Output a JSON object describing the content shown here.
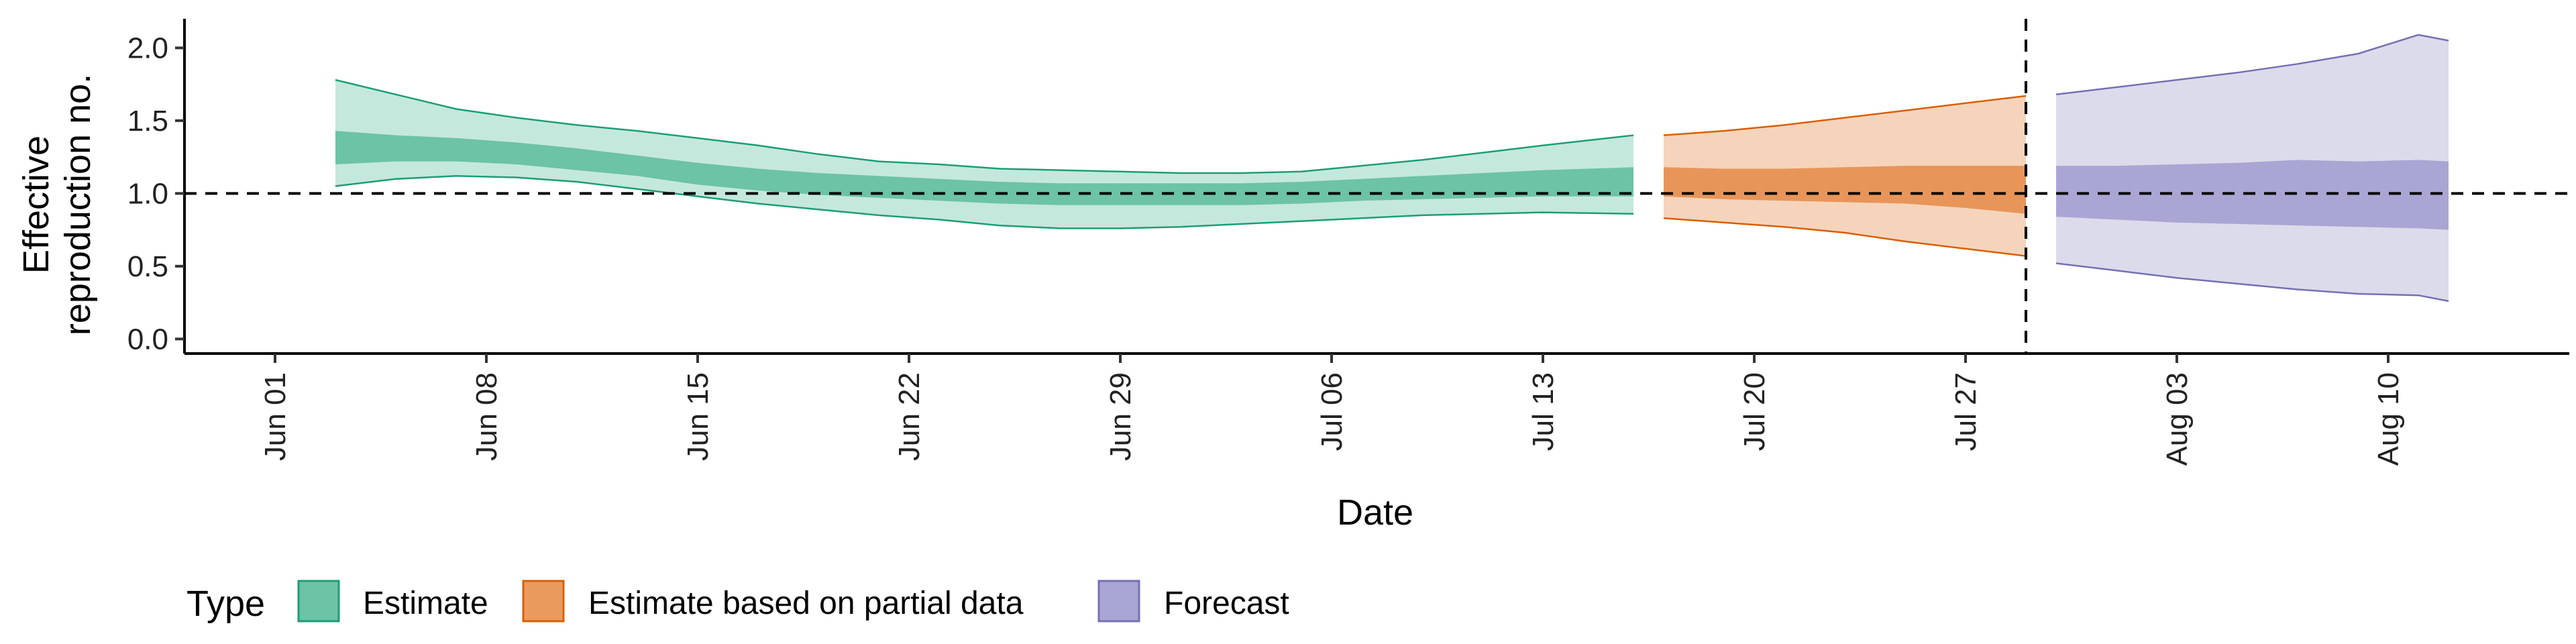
{
  "chart_data": {
    "type": "area",
    "xlabel": "Date",
    "ylabel_lines": [
      "Effective",
      "reproduction no."
    ],
    "ylim": [
      -0.1,
      2.2
    ],
    "yticks": [
      0.0,
      0.5,
      1.0,
      1.5,
      2.0
    ],
    "ytick_labels": [
      "0.0",
      "0.5",
      "1.0",
      "1.5",
      "2.0"
    ],
    "xlim": [
      "2020-05-29",
      "2020-08-16"
    ],
    "xticks": [
      "2020-06-01",
      "2020-06-08",
      "2020-06-15",
      "2020-06-22",
      "2020-06-29",
      "2020-07-06",
      "2020-07-13",
      "2020-07-20",
      "2020-07-27",
      "2020-08-03",
      "2020-08-10"
    ],
    "xtick_labels": [
      "Jun 01",
      "Jun 08",
      "Jun 15",
      "Jun 22",
      "Jun 29",
      "Jul 06",
      "Jul 13",
      "Jul 20",
      "Jul 27",
      "Aug 03",
      "Aug 10"
    ],
    "reference_hline": 1.0,
    "reference_vline": "2020-07-29",
    "grid": false,
    "legend": {
      "title": "Type",
      "position": "bottom",
      "entries": [
        {
          "label": "Estimate",
          "fill": "#6cc3a5",
          "stroke": "#1b9e77"
        },
        {
          "label": "Estimate based on partial data",
          "fill": "#eb9a5e",
          "stroke": "#d95f02"
        },
        {
          "label": "Forecast",
          "fill": "#a9a6d4",
          "stroke": "#7570b3"
        }
      ]
    },
    "series": [
      {
        "name": "Estimate",
        "outer_fill": "#c5e8dc",
        "inner_fill": "#6cc3a5",
        "stroke": "#1b9e77",
        "x": [
          "2020-06-03",
          "2020-06-05",
          "2020-06-07",
          "2020-06-09",
          "2020-06-11",
          "2020-06-13",
          "2020-06-15",
          "2020-06-17",
          "2020-06-19",
          "2020-06-21",
          "2020-06-23",
          "2020-06-25",
          "2020-06-27",
          "2020-06-29",
          "2020-07-01",
          "2020-07-03",
          "2020-07-05",
          "2020-07-07",
          "2020-07-09",
          "2020-07-11",
          "2020-07-13",
          "2020-07-16"
        ],
        "upper90": [
          1.78,
          1.68,
          1.58,
          1.52,
          1.47,
          1.43,
          1.38,
          1.33,
          1.27,
          1.22,
          1.2,
          1.17,
          1.16,
          1.15,
          1.14,
          1.14,
          1.15,
          1.19,
          1.23,
          1.28,
          1.33,
          1.4
        ],
        "upper50": [
          1.43,
          1.4,
          1.38,
          1.35,
          1.31,
          1.26,
          1.21,
          1.17,
          1.14,
          1.12,
          1.1,
          1.08,
          1.07,
          1.07,
          1.07,
          1.07,
          1.08,
          1.1,
          1.12,
          1.14,
          1.16,
          1.18
        ],
        "lower50": [
          1.2,
          1.22,
          1.22,
          1.2,
          1.16,
          1.12,
          1.06,
          1.02,
          0.99,
          0.97,
          0.95,
          0.93,
          0.92,
          0.92,
          0.92,
          0.92,
          0.93,
          0.95,
          0.96,
          0.97,
          0.98,
          0.98
        ],
        "lower90": [
          1.05,
          1.1,
          1.12,
          1.11,
          1.08,
          1.03,
          0.98,
          0.93,
          0.89,
          0.85,
          0.82,
          0.78,
          0.76,
          0.76,
          0.77,
          0.79,
          0.81,
          0.83,
          0.85,
          0.86,
          0.87,
          0.86
        ]
      },
      {
        "name": "Estimate based on partial data",
        "outer_fill": "#f5d4bb",
        "inner_fill": "#e8955a",
        "stroke": "#d95f02",
        "x": [
          "2020-07-17",
          "2020-07-19",
          "2020-07-21",
          "2020-07-23",
          "2020-07-25",
          "2020-07-27",
          "2020-07-29"
        ],
        "upper90": [
          1.4,
          1.43,
          1.47,
          1.52,
          1.57,
          1.62,
          1.67
        ],
        "upper50": [
          1.18,
          1.17,
          1.17,
          1.18,
          1.19,
          1.19,
          1.19
        ],
        "lower50": [
          0.98,
          0.96,
          0.95,
          0.94,
          0.93,
          0.9,
          0.86
        ],
        "lower90": [
          0.83,
          0.8,
          0.77,
          0.73,
          0.67,
          0.62,
          0.57
        ]
      },
      {
        "name": "Forecast",
        "outer_fill": "#dcdbec",
        "inner_fill": "#a9a6d4",
        "stroke": "#7570b3",
        "x": [
          "2020-07-30",
          "2020-08-01",
          "2020-08-03",
          "2020-08-05",
          "2020-08-07",
          "2020-08-09",
          "2020-08-11",
          "2020-08-12"
        ],
        "upper90": [
          1.68,
          1.73,
          1.78,
          1.83,
          1.89,
          1.96,
          2.09,
          2.05
        ],
        "upper50": [
          1.19,
          1.19,
          1.2,
          1.21,
          1.23,
          1.22,
          1.23,
          1.22
        ],
        "lower50": [
          0.84,
          0.82,
          0.8,
          0.79,
          0.78,
          0.77,
          0.76,
          0.75
        ],
        "lower90": [
          0.52,
          0.47,
          0.42,
          0.38,
          0.34,
          0.31,
          0.3,
          0.26
        ]
      }
    ]
  }
}
